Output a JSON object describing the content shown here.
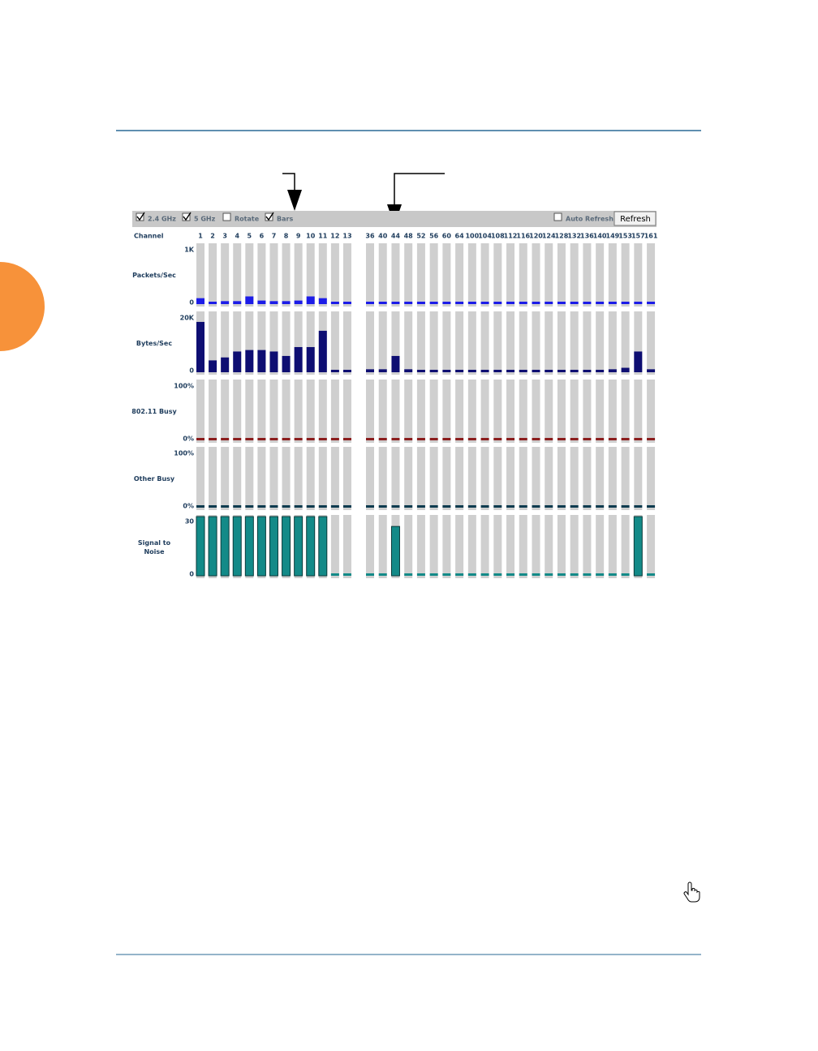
{
  "toolbar": {
    "checkboxes": [
      {
        "label": "2.4 GHz",
        "checked": true
      },
      {
        "label": "5 GHz",
        "checked": true
      },
      {
        "label": "Rotate",
        "checked": false
      },
      {
        "label": "Bars",
        "checked": true
      }
    ],
    "auto_refresh": {
      "label": "Auto Refresh",
      "checked": false
    },
    "button": "Refresh"
  },
  "chart_data": {
    "type": "bar",
    "channel_label": "Channel",
    "categories": [
      "1",
      "2",
      "3",
      "4",
      "5",
      "6",
      "7",
      "8",
      "9",
      "10",
      "11",
      "12",
      "13",
      "36",
      "40",
      "44",
      "48",
      "52",
      "56",
      "60",
      "64",
      "100",
      "104",
      "108",
      "112",
      "116",
      "120",
      "124",
      "128",
      "132",
      "136",
      "140",
      "149",
      "153",
      "157",
      "161"
    ],
    "panels": [
      {
        "name": "Packets/Sec",
        "color": "#1c1ce8",
        "ylim": [
          0,
          1000
        ],
        "yticks": [
          0,
          {
            "value": 1000,
            "label": "1K"
          }
        ],
        "values": [
          100,
          40,
          50,
          50,
          130,
          60,
          50,
          50,
          60,
          130,
          100,
          0,
          0,
          0,
          0,
          20,
          0,
          0,
          0,
          0,
          0,
          0,
          0,
          0,
          0,
          0,
          0,
          0,
          0,
          0,
          0,
          0,
          20,
          30,
          30,
          0
        ]
      },
      {
        "name": "Bytes/Sec",
        "color": "#0e0e72",
        "ylim": [
          0,
          20000
        ],
        "yticks": [
          0,
          {
            "value": 20000,
            "label": "20K"
          }
        ],
        "values": [
          17000,
          4000,
          5000,
          7000,
          7500,
          7500,
          7000,
          5500,
          8500,
          8500,
          14000,
          0,
          0,
          1000,
          1000,
          5500,
          1000,
          500,
          500,
          500,
          500,
          500,
          500,
          500,
          500,
          500,
          500,
          500,
          500,
          500,
          500,
          500,
          1000,
          1500,
          7000,
          1000
        ]
      },
      {
        "name": "802.11 Busy",
        "color": "#8b1c1c",
        "ylim": [
          0,
          100
        ],
        "yticks": [
          {
            "value": 0,
            "label": "0%"
          },
          {
            "value": 100,
            "label": "100%"
          }
        ],
        "values": [
          0,
          0,
          0,
          0,
          0,
          0,
          0,
          0,
          0,
          0,
          0,
          0,
          0,
          0,
          0,
          0,
          0,
          0,
          0,
          0,
          0,
          0,
          0,
          0,
          0,
          0,
          0,
          0,
          0,
          0,
          0,
          0,
          0,
          0,
          0,
          0
        ]
      },
      {
        "name": "Other Busy",
        "color": "#0d3b4f",
        "ylim": [
          0,
          100
        ],
        "yticks": [
          {
            "value": 0,
            "label": "0%"
          },
          {
            "value": 100,
            "label": "100%"
          }
        ],
        "values": [
          0,
          0,
          0,
          0,
          0,
          0,
          0,
          0,
          0,
          0,
          0,
          0,
          0,
          0,
          0,
          0,
          0,
          0,
          0,
          0,
          0,
          0,
          0,
          0,
          0,
          0,
          0,
          0,
          0,
          0,
          0,
          0,
          0,
          0,
          0,
          0
        ]
      },
      {
        "name": "Signal to Noise",
        "color": "#138a88",
        "ylim": [
          0,
          30
        ],
        "yticks": [
          0,
          30
        ],
        "values": [
          30,
          30,
          30,
          30,
          30,
          30,
          30,
          30,
          30,
          30,
          30,
          0,
          0,
          0,
          0,
          25,
          0,
          0,
          0,
          0,
          0,
          0,
          0,
          0,
          0,
          0,
          0,
          0,
          0,
          0,
          0,
          0,
          0,
          0,
          30,
          0
        ]
      }
    ]
  }
}
